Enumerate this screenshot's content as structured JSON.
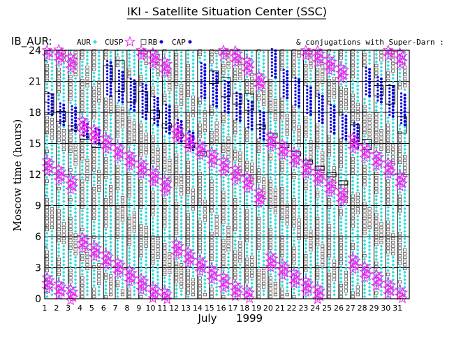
{
  "chart_data": {
    "type": "scatter",
    "title": "IKI - Satellite Situation Center (SSC)",
    "satellite_label": "IB_AUR:",
    "legend": [
      {
        "label": "AUR",
        "marker": "cyan-diamond",
        "color": "#33dddd"
      },
      {
        "label": "CUSP",
        "marker": "magenta-star",
        "color": "#ee22ee"
      },
      {
        "label": "RB",
        "marker": "open-square",
        "color": "#555555"
      },
      {
        "label": "CAP",
        "marker": "blue-dot",
        "color": "#0000dd"
      }
    ],
    "note": "& conjugations with Super-Darn :",
    "ylabel": "Moscow time (hours)",
    "xlabel_month": "July",
    "xlabel_year": "1999",
    "ylim": [
      0,
      24
    ],
    "xlim": [
      1,
      32
    ],
    "y_ticks": [
      0,
      3,
      6,
      9,
      12,
      15,
      18,
      21,
      24
    ],
    "x_ticks": [
      "1",
      "2",
      "3",
      "4",
      "5",
      "6",
      "7",
      "8",
      "9",
      "10",
      "11",
      "12",
      "13",
      "14",
      "15",
      "16",
      "17",
      "18",
      "19",
      "20",
      "21",
      "22",
      "23",
      "24",
      "25",
      "26",
      "27",
      "28",
      "29",
      "30",
      "31"
    ],
    "grid": true,
    "cusp_crossings_hours": [
      [
        1.5,
        12.8,
        24.0
      ],
      [
        0.9,
        12.0,
        23.5
      ],
      [
        0.4,
        11.1,
        22.8
      ],
      [
        5.4,
        16.7
      ],
      [
        4.6,
        15.8
      ],
      [
        3.8,
        15.0
      ],
      [
        3.0,
        14.2
      ],
      [
        2.2,
        13.4
      ],
      [
        1.4,
        12.6,
        24.0
      ],
      [
        0.6,
        11.8,
        23.2
      ],
      [
        0.2,
        10.9,
        22.4
      ],
      [
        4.8,
        16.0
      ],
      [
        4.0,
        15.1
      ],
      [
        3.2,
        14.4
      ],
      [
        2.4,
        13.6
      ],
      [
        1.6,
        12.8,
        24.0
      ],
      [
        0.8,
        12.0,
        23.4
      ],
      [
        0.3,
        11.2,
        22.5
      ],
      [
        9.8,
        21.0
      ],
      [
        3.6,
        15.2
      ],
      [
        2.8,
        14.4
      ],
      [
        2.0,
        13.6
      ],
      [
        1.2,
        12.6,
        24.0
      ],
      [
        0.5,
        11.8,
        23.4
      ],
      [
        10.8,
        22.6
      ],
      [
        9.9,
        21.8
      ],
      [
        3.4,
        15.0
      ],
      [
        2.6,
        14.2
      ],
      [
        1.8,
        13.4
      ],
      [
        1.0,
        12.6,
        24.0
      ],
      [
        0.3,
        11.4,
        23.2
      ]
    ],
    "cap_intervals_hours": [
      [
        17.8,
        20.0
      ],
      [
        16.8,
        19.0
      ],
      [
        16.2,
        18.6
      ],
      [
        15.6,
        17.0
      ],
      [
        15.0,
        16.4
      ],
      [
        19.6,
        23.0
      ],
      [
        19.0,
        22.2
      ],
      [
        18.2,
        21.4
      ],
      [
        17.4,
        20.6
      ],
      [
        16.8,
        19.6
      ],
      [
        16.0,
        18.6
      ],
      [
        15.2,
        17.4
      ],
      [
        14.4,
        16.0
      ],
      [
        19.4,
        22.8
      ],
      [
        18.6,
        22.0
      ],
      [
        18.0,
        21.0
      ],
      [
        17.2,
        20.0
      ],
      [
        16.4,
        19.0
      ],
      [
        15.4,
        18.0
      ],
      [
        21.4,
        24.0
      ],
      [
        19.4,
        22.0
      ],
      [
        18.6,
        21.2
      ],
      [
        17.8,
        20.4
      ],
      [
        17.0,
        19.6
      ],
      [
        16.0,
        18.6
      ],
      [
        15.4,
        17.8
      ],
      [
        14.6,
        17.0
      ],
      [
        19.6,
        22.4
      ],
      [
        19.0,
        21.4
      ],
      [
        17.6,
        20.8
      ],
      [
        16.8,
        20.0
      ]
    ],
    "conjugation_boxes_hours": [
      [
        17.8,
        19.8
      ],
      [
        17.1,
        18.1
      ],
      [
        16.3,
        16.7
      ],
      [
        15.4,
        15.8
      ],
      [
        14.6,
        15.0
      ],
      [
        21.0,
        22.5
      ],
      [
        20.0,
        23.0
      ],
      [
        19.0,
        21.0
      ],
      [
        18.0,
        20.0
      ],
      [
        17.4,
        18.2
      ],
      [
        16.5,
        16.9
      ],
      [
        15.6,
        16.0
      ],
      [
        14.6,
        15.0
      ],
      [
        13.8,
        14.2
      ],
      [
        20.8,
        22.0
      ],
      [
        19.5,
        21.4
      ],
      [
        18.8,
        19.8
      ],
      [
        18.2,
        19.8
      ],
      [
        16.4,
        16.8
      ],
      [
        15.6,
        16.0
      ],
      [
        14.6,
        15.0
      ],
      [
        13.8,
        14.2
      ],
      [
        13.0,
        13.4
      ],
      [
        12.4,
        12.8
      ],
      [
        11.8,
        12.2
      ],
      [
        11.0,
        11.4
      ],
      [
        15.2,
        16.8
      ],
      [
        14.4,
        15.4
      ],
      [
        19.6,
        20.6
      ],
      [
        18.8,
        20.6
      ],
      [
        16.0,
        17.6
      ]
    ]
  }
}
